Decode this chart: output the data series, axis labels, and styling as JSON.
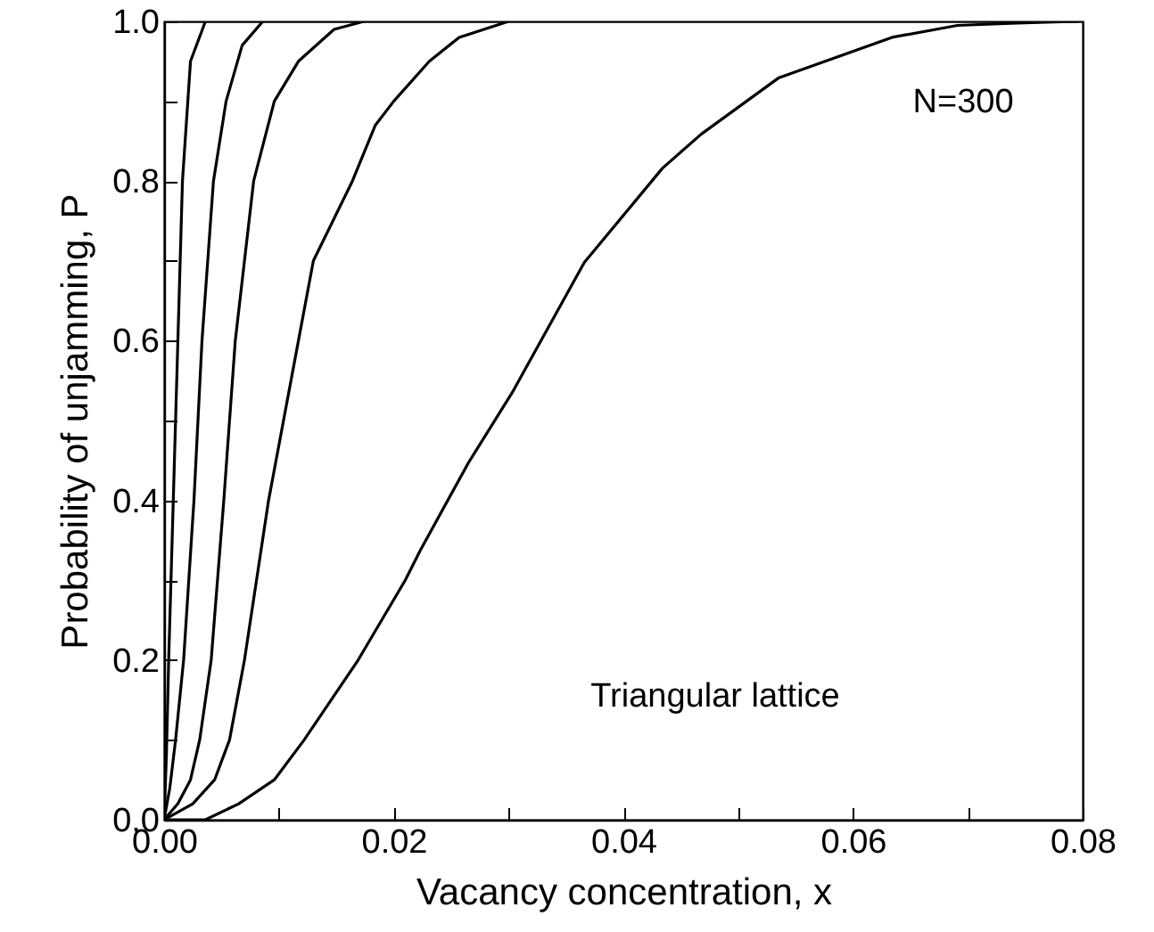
{
  "chart_data": {
    "type": "line",
    "xlabel": "Vacancy concentration, x",
    "ylabel": "Probability of unjamming, P",
    "xlim": [
      0,
      0.08
    ],
    "ylim": [
      0,
      1
    ],
    "xticks": [
      {
        "value": 0,
        "label": "0.00"
      },
      {
        "value": 0.01,
        "label": null
      },
      {
        "value": 0.02,
        "label": "0.02"
      },
      {
        "value": 0.03,
        "label": null
      },
      {
        "value": 0.04,
        "label": "0.04"
      },
      {
        "value": 0.05,
        "label": null
      },
      {
        "value": 0.06,
        "label": "0.06"
      },
      {
        "value": 0.07,
        "label": null
      },
      {
        "value": 0.08,
        "label": "0.08"
      }
    ],
    "yticks": [
      {
        "value": 0,
        "label": "0.0"
      },
      {
        "value": 0.1,
        "label": null
      },
      {
        "value": 0.2,
        "label": "0.2"
      },
      {
        "value": 0.3,
        "label": null
      },
      {
        "value": 0.4,
        "label": "0.4"
      },
      {
        "value": 0.5,
        "label": null
      },
      {
        "value": 0.6,
        "label": "0.6"
      },
      {
        "value": 0.7,
        "label": null
      },
      {
        "value": 0.8,
        "label": "0.8"
      },
      {
        "value": 0.9,
        "label": null
      },
      {
        "value": 1,
        "label": "1.0"
      }
    ],
    "annotations": [
      "N=300",
      "Triangular lattice"
    ],
    "marker": "none",
    "line_style": "solid",
    "series": [
      {
        "color": "#000000",
        "x": [
          0,
          0.0002,
          0.0004,
          0.001,
          0.0016,
          0.0023,
          0.0036
        ],
        "values": [
          0,
          0.08,
          0.2,
          0.5,
          0.8,
          0.95,
          1
        ]
      },
      {
        "color": "#000000",
        "x": [
          0,
          0.0005,
          0.001,
          0.0017,
          0.0026,
          0.0033,
          0.0043,
          0.0054,
          0.0068,
          0.0086
        ],
        "values": [
          0,
          0.04,
          0.1,
          0.2,
          0.4,
          0.6,
          0.8,
          0.9,
          0.97,
          1
        ]
      },
      {
        "color": "#000000",
        "x": [
          0,
          0.0012,
          0.0023,
          0.0031,
          0.0041,
          0.0052,
          0.0062,
          0.0078,
          0.0096,
          0.0117,
          0.0148,
          0.0174
        ],
        "values": [
          0,
          0.02,
          0.05,
          0.1,
          0.2,
          0.4,
          0.6,
          0.8,
          0.9,
          0.95,
          0.99,
          1
        ]
      },
      {
        "color": "#000000",
        "x": [
          0,
          0.0025,
          0.0044,
          0.0057,
          0.007,
          0.0091,
          0.0117,
          0.013,
          0.0164,
          0.0184,
          0.02,
          0.0231,
          0.0257,
          0.03
        ],
        "values": [
          0,
          0.02,
          0.05,
          0.1,
          0.2,
          0.4,
          0.6,
          0.7,
          0.8,
          0.87,
          0.9,
          0.95,
          0.98,
          1
        ]
      },
      {
        "color": "#000000",
        "x": [
          0,
          0.0036,
          0.0065,
          0.0096,
          0.0122,
          0.0169,
          0.021,
          0.0223,
          0.0265,
          0.0304,
          0.0366,
          0.0434,
          0.0468,
          0.0535,
          0.0634,
          0.0691,
          0.0743,
          0.0795
        ],
        "values": [
          0,
          0,
          0.02,
          0.05,
          0.1,
          0.2,
          0.3,
          0.337,
          0.447,
          0.537,
          0.698,
          0.816,
          0.859,
          0.929,
          0.98,
          0.995,
          0.998,
          1
        ]
      }
    ]
  }
}
